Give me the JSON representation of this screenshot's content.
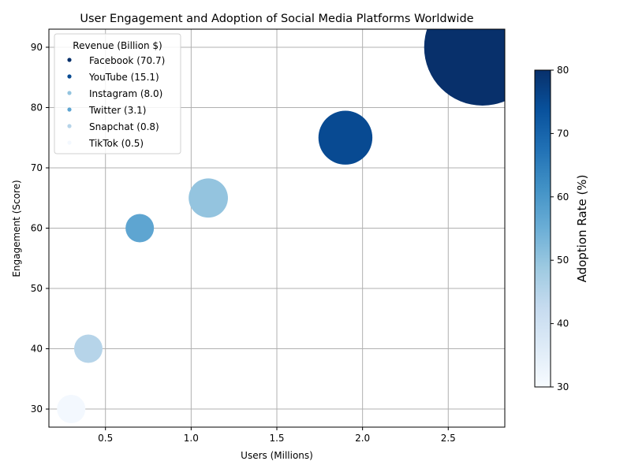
{
  "chart_data": {
    "type": "scatter",
    "title": "User Engagement and Adoption of Social Media Platforms Worldwide",
    "xlabel": "Users (Millions)",
    "ylabel": "Engagement (Score)",
    "xlim": [
      0.17,
      2.83
    ],
    "ylim": [
      27,
      93
    ],
    "xticks": [
      0.5,
      1.0,
      1.5,
      2.0,
      2.5
    ],
    "xtick_labels": [
      "0.5",
      "1.0",
      "1.5",
      "2.0",
      "2.5"
    ],
    "yticks": [
      30,
      40,
      50,
      60,
      70,
      80,
      90
    ],
    "ytick_labels": [
      "30",
      "40",
      "50",
      "60",
      "70",
      "80",
      "90"
    ],
    "grid": true,
    "legend": {
      "title": "Revenue (Billion $)",
      "placement": "top-left"
    },
    "colorbar": {
      "label": "Adoption Rate (%)",
      "range": [
        30,
        80
      ],
      "ticks": [
        30,
        40,
        50,
        60,
        70,
        80
      ],
      "tick_labels": [
        "30",
        "40",
        "50",
        "60",
        "70",
        "80"
      ],
      "colormap": [
        "#f7fbff",
        "#deebf7",
        "#c6dbef",
        "#9ecae1",
        "#6baed6",
        "#4292c6",
        "#2171b5",
        "#08519c",
        "#08306b"
      ]
    },
    "series": [
      {
        "name": "Facebook (70.7)",
        "platform": "Facebook",
        "x": 2.7,
        "y": 90,
        "adoption_rate": 80,
        "revenue": 70.7
      },
      {
        "name": "YouTube (15.1)",
        "platform": "YouTube",
        "x": 1.9,
        "y": 75,
        "adoption_rate": 75,
        "revenue": 15.1
      },
      {
        "name": "Instagram (8.0)",
        "platform": "Instagram",
        "x": 1.1,
        "y": 65,
        "adoption_rate": 50,
        "revenue": 8.0
      },
      {
        "name": "Twitter (3.1)",
        "platform": "Twitter",
        "x": 0.7,
        "y": 60,
        "adoption_rate": 57,
        "revenue": 3.1
      },
      {
        "name": "Snapchat (0.8)",
        "platform": "Snapchat",
        "x": 0.4,
        "y": 40,
        "adoption_rate": 45,
        "revenue": 0.8
      },
      {
        "name": "TikTok (0.5)",
        "platform": "TikTok",
        "x": 0.3,
        "y": 30,
        "adoption_rate": 31,
        "revenue": 0.5
      }
    ]
  }
}
